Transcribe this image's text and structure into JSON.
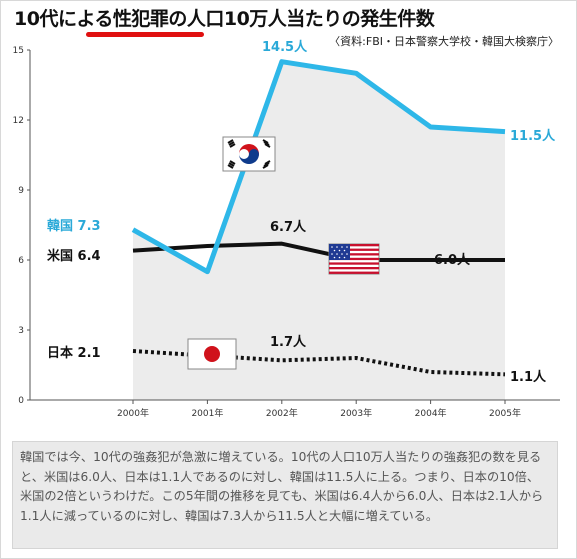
{
  "title": "10代による性犯罪の人口10万人当たりの発生件数",
  "source": "〈資料:FBI・日本警察大学校・韓国大検察庁〉",
  "caption": "韓国では今、10代の強姦犯が急激に増えている。10代の人口10万人当たりの強姦犯の数を見ると、米国は6.0人、日本は1.1人であるのに対し、韓国は11.5人に上る。つまり、日本の10倍、米国の2倍というわけだ。この5年間の推移を見ても、米国は6.4人から6.0人、日本は2.1人から1.1人に減っているのに対し、韓国は7.3人から11.5人と大幅に増えている。",
  "colors": {
    "korea": "#2eb7e8",
    "usa": "#111111",
    "japan": "#111111",
    "area": "#ececec"
  },
  "chart_data": {
    "type": "line",
    "title": "10代による性犯罪の人口10万人当たりの発生件数",
    "x": [
      "2000年",
      "2001年",
      "2002年",
      "2003年",
      "2004年",
      "2005年"
    ],
    "yticks": [
      0,
      3,
      6,
      9,
      12,
      15
    ],
    "ylim": [
      0,
      15
    ],
    "grid": false,
    "series": [
      {
        "name": "韓国",
        "values": [
          7.3,
          5.5,
          14.5,
          14.0,
          11.7,
          11.5
        ]
      },
      {
        "name": "米国",
        "values": [
          6.4,
          6.6,
          6.7,
          6.0,
          6.0,
          6.0
        ]
      },
      {
        "name": "日本",
        "values": [
          2.1,
          1.9,
          1.7,
          1.8,
          1.2,
          1.1
        ]
      }
    ],
    "labels": {
      "korea_start": "韓国 7.3",
      "usa_start": "米国 6.4",
      "japan_start": "日本 2.1",
      "korea_peak": "14.5人",
      "korea_end": "11.5人",
      "usa_peak": "6.7人",
      "usa_end": "6.0人",
      "japan_mid": "1.7人",
      "japan_end": "1.1人"
    }
  }
}
